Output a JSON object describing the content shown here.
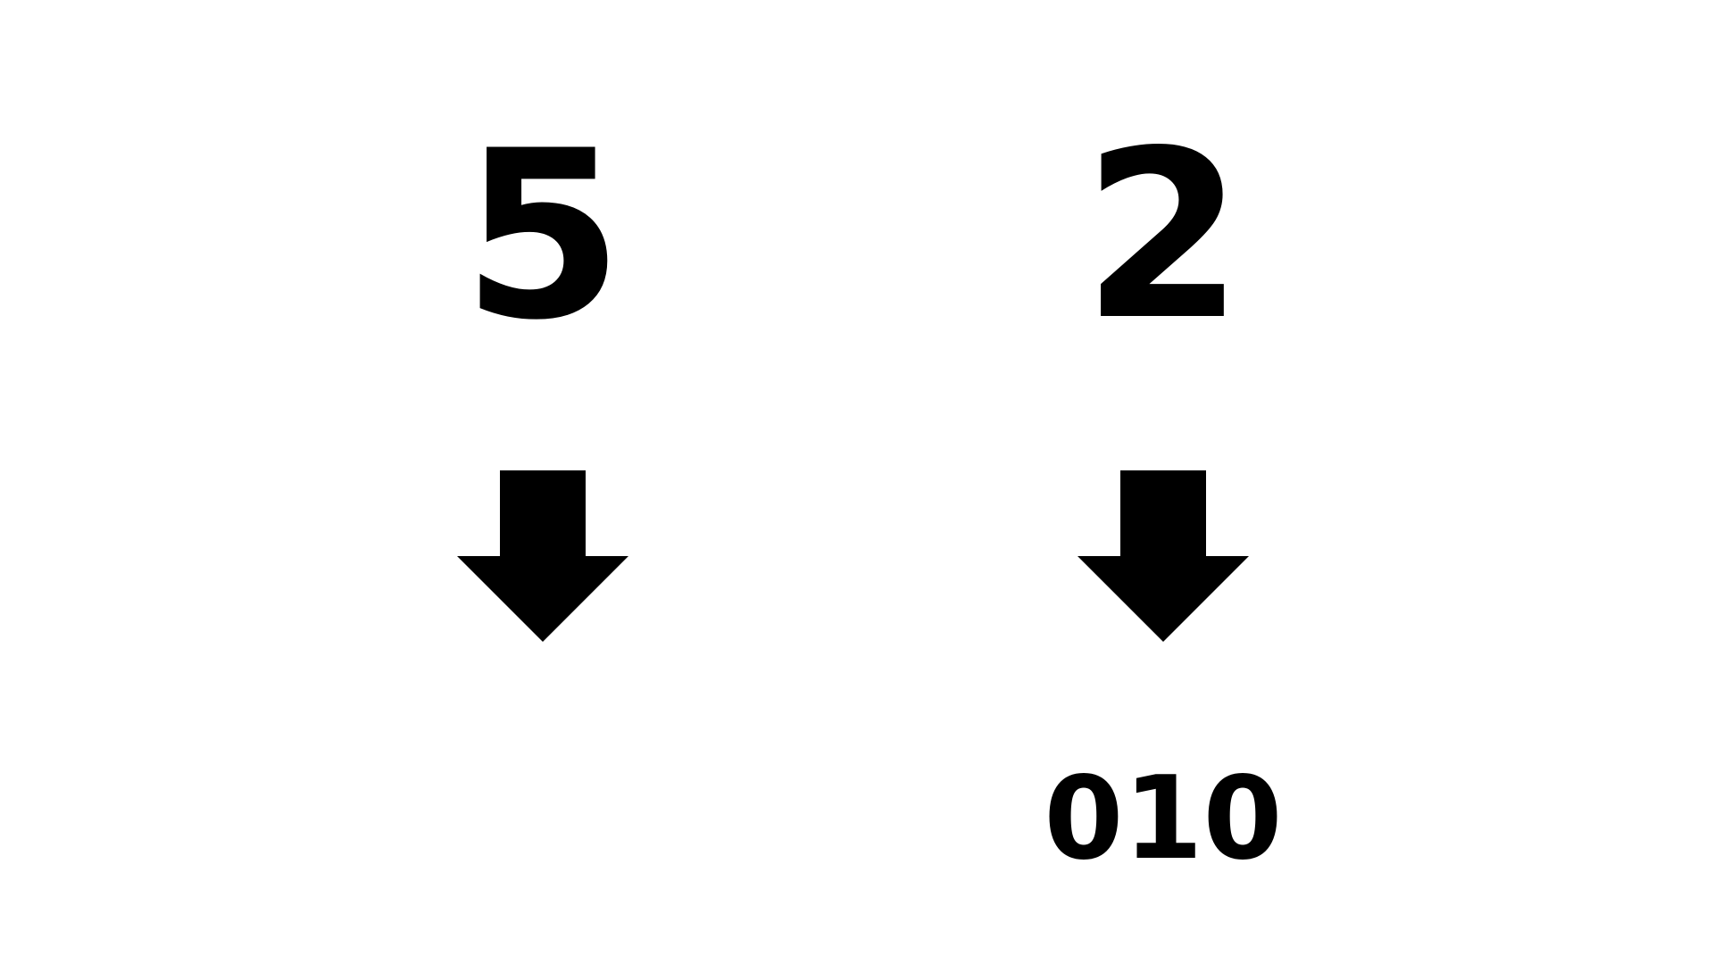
{
  "diagram": {
    "left": {
      "top_value": "5",
      "bottom_value": "",
      "arrow_icon": "down-arrow-icon"
    },
    "right": {
      "top_value": "2",
      "bottom_value": "010",
      "arrow_icon": "down-arrow-icon"
    },
    "colors": {
      "foreground": "#000000",
      "background": "#ffffff"
    }
  }
}
